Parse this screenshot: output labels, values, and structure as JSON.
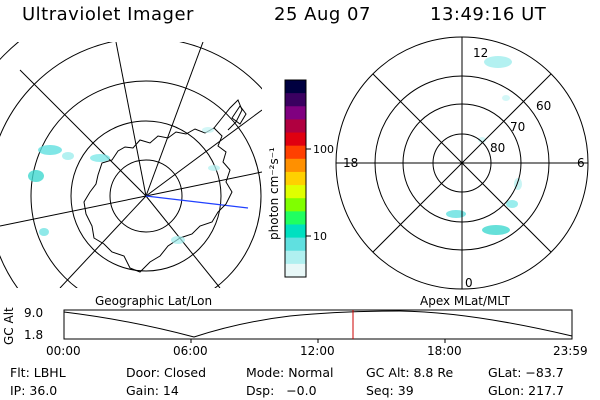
{
  "header": {
    "title": "Ultraviolet Imager",
    "date": "25 Aug 07",
    "time": "13:49:16 UT"
  },
  "left_panel": {
    "caption": "Geographic Lat/Lon"
  },
  "right_panel": {
    "caption": "Apex MLat/MLT",
    "mlt_labels": {
      "top": "12",
      "left": "18",
      "right": "6",
      "bottom": "0"
    },
    "lat_labels": [
      "60",
      "70",
      "80"
    ]
  },
  "colorbar": {
    "unit_label": "photon cm⁻²s⁻¹",
    "ticks": [
      "100",
      "10"
    ],
    "colors": [
      "#000040",
      "#3a0060",
      "#800080",
      "#b00040",
      "#e00010",
      "#ff4000",
      "#ff9000",
      "#ffd000",
      "#e0ff00",
      "#80ff00",
      "#20ff60",
      "#00e0c0",
      "#60e0e0",
      "#b0f0f0",
      "#e8f8f8"
    ]
  },
  "altitude_plot": {
    "ylabel": "GC Alt",
    "y_ticks": [
      "9.0",
      "1.8"
    ],
    "x_ticks": [
      "00:00",
      "06:00",
      "12:00",
      "18:00",
      "23:59"
    ],
    "current_time_marker": "13:49",
    "marker_color": "#cc0000"
  },
  "footer": {
    "row1": {
      "filter": "Flt: LBHL",
      "door": "Door: Closed",
      "mode": "Mode: Normal",
      "gc_alt": "GC Alt: 8.8 Re",
      "glat": "GLat: −83.7"
    },
    "row2": {
      "ip": "IP: 36.0",
      "gain": "Gain: 14",
      "dsp": "Dsp:   −0.0",
      "seq": "Seq: 39",
      "glon": "GLon: 217.7"
    }
  }
}
